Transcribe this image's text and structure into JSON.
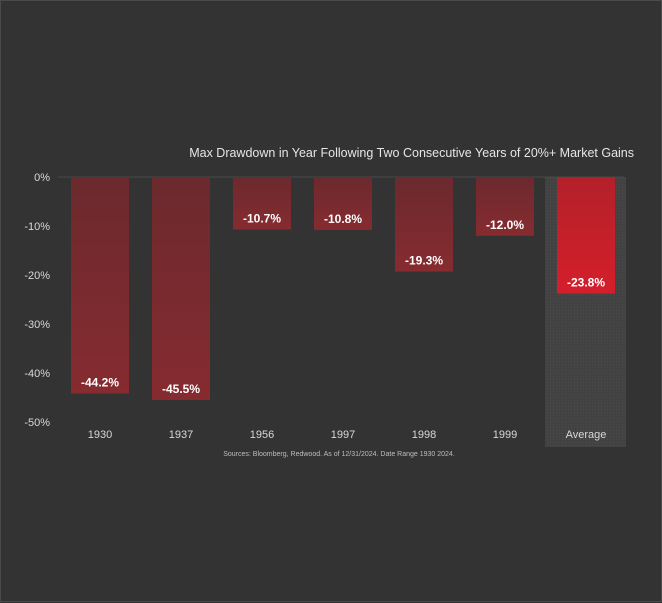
{
  "chart_data": {
    "type": "bar",
    "title": "Max Drawdown in Year Following Two Consecutive Years of 20%+ Market Gains",
    "categories": [
      "1930",
      "1937",
      "1956",
      "1997",
      "1998",
      "1999",
      "Average"
    ],
    "values": [
      -44.2,
      -45.5,
      -10.7,
      -10.8,
      -19.3,
      -12.0,
      -23.8
    ],
    "data_labels": [
      "-44.2%",
      "-45.5%",
      "-10.7%",
      "-10.8%",
      "-19.3%",
      "-12.0%",
      "-23.8%"
    ],
    "yticks": [
      0,
      -10,
      -20,
      -30,
      -40,
      -50
    ],
    "ytick_labels": [
      "0%",
      "-10%",
      "-20%",
      "-30%",
      "-40%",
      "-50%"
    ],
    "ylim": [
      -50,
      0
    ],
    "xlabel": "",
    "ylabel": "",
    "grid": false,
    "highlight_category": "Average",
    "colors": {
      "bar_top": "#6b2a2e",
      "bar_bottom": "#862b30",
      "highlight_top": "#b3202a",
      "highlight_bottom": "#d41f2b",
      "highlight_column_bg": "#444444",
      "background": "#333333"
    },
    "source": "Sources: Bloomberg, Redwood. As of 12/31/2024. Date Range 1930     2024."
  }
}
